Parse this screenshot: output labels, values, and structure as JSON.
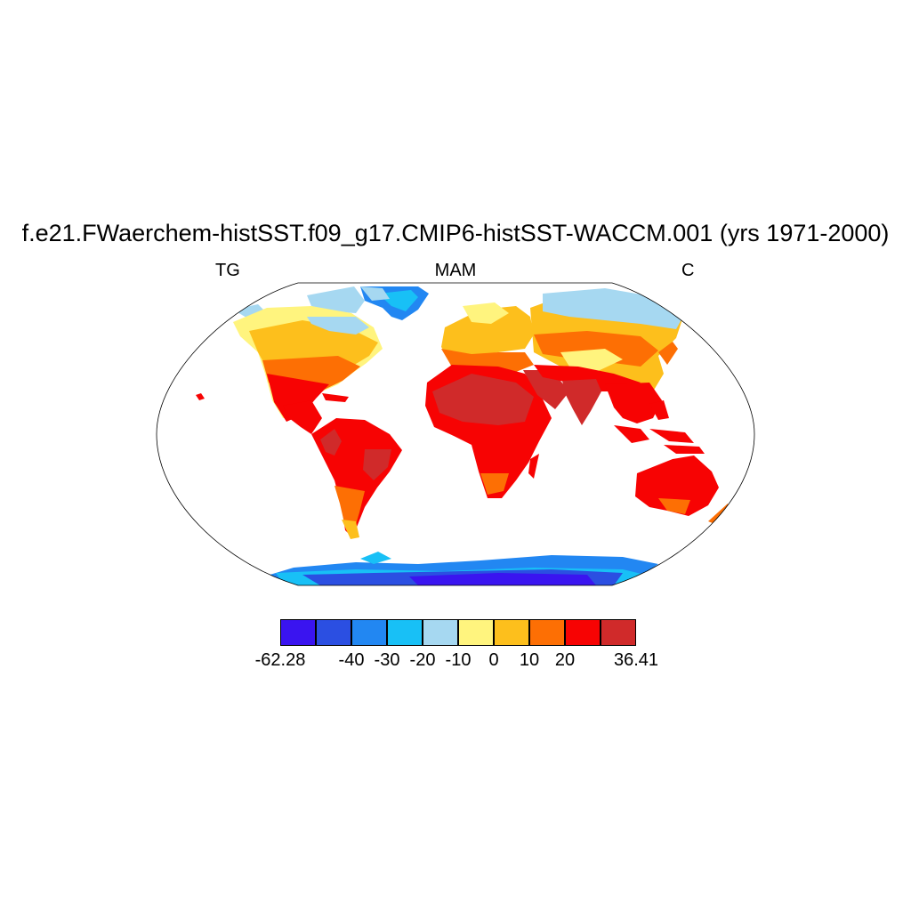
{
  "title": "f.e21.FWaerchem-histSST.f09_g17.CMIP6-histSST-WACCM.001 (yrs 1971-2000)",
  "subtitles": {
    "left": "TG",
    "center": "MAM",
    "right": "C"
  },
  "colorbar": {
    "colors": [
      "#3a14f0",
      "#2b4fe2",
      "#2287f2",
      "#18c0f6",
      "#a6d8f1",
      "#fff47e",
      "#fdbf1c",
      "#fd6f04",
      "#f70303",
      "#d02a2a"
    ],
    "labels": [
      "-62.28",
      "-40",
      "-30",
      "-20",
      "-10",
      "0",
      "10",
      "20",
      "36.41"
    ],
    "label_edges": [
      0,
      2,
      3,
      4,
      5,
      6,
      7,
      8,
      10
    ]
  },
  "map": {
    "projection": "Robinson",
    "ocean_color": "#ffffff",
    "outline_color": "#000000"
  }
}
